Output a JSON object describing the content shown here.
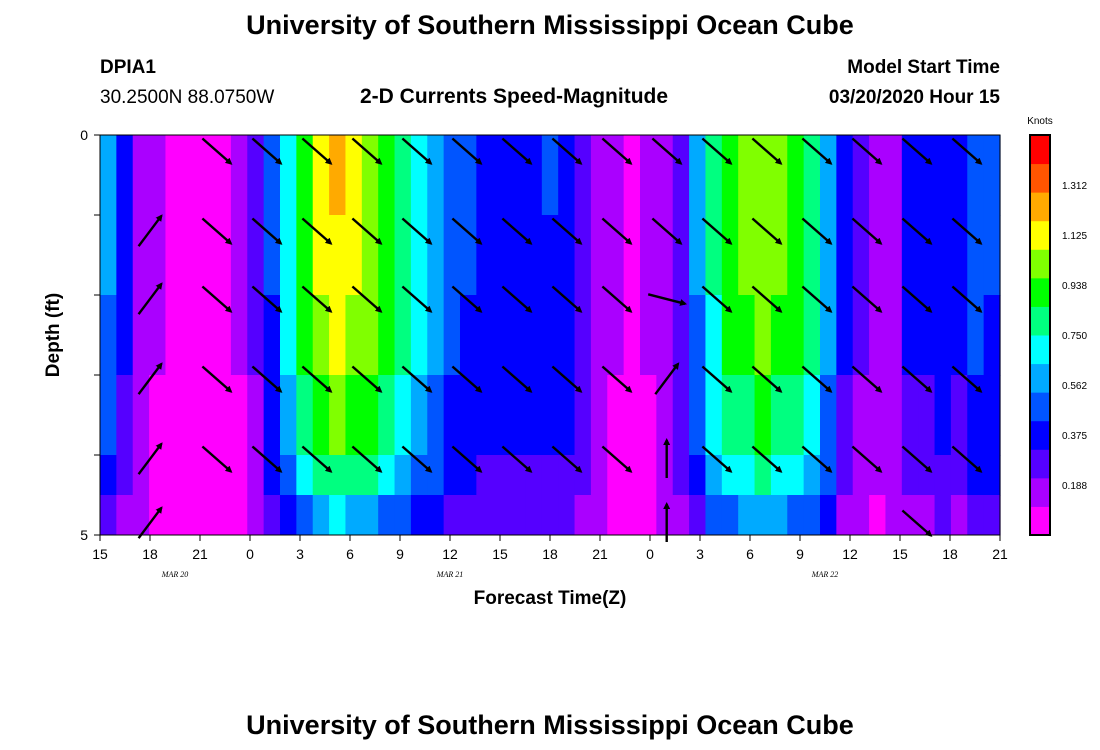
{
  "header": {
    "title": "University of Southern Mississippi Ocean Cube",
    "station": "DPIA1",
    "coords": "30.2500N 88.0750W",
    "subtitle": "2-D Currents Speed-Magnitude",
    "model_start_label": "Model Start Time",
    "model_start_value": "03/20/2020 Hour 15"
  },
  "footer": {
    "title": "University of Southern Mississippi Ocean Cube"
  },
  "colors": {
    "scale": [
      "#ff00ff",
      "#aa00ff",
      "#5500ff",
      "#0000ff",
      "#0055ff",
      "#00aaff",
      "#00ffff",
      "#00ff80",
      "#00ff00",
      "#80ff00",
      "#ffff00",
      "#ffaa00",
      "#ff5500",
      "#ff0000"
    ],
    "arrow": "#000000"
  },
  "chart_data": {
    "type": "heatmap",
    "title": "2-D Currents Speed-Magnitude",
    "xlabel": "Forecast Time(Z)",
    "ylabel": "Depth (ft)",
    "xlim": [
      15,
      69
    ],
    "ylim": [
      0,
      5
    ],
    "y_reversed": true,
    "x_tick_labels": [
      "15",
      "18",
      "21",
      "0",
      "3",
      "6",
      "9",
      "12",
      "15",
      "18",
      "21",
      "0",
      "3",
      "6",
      "9",
      "12",
      "15",
      "18",
      "21"
    ],
    "y_tick_labels": [
      "0",
      "5"
    ],
    "date_labels": [
      {
        "text": "MAR 20",
        "x": 19.5
      },
      {
        "text": "MAR 21",
        "x": 36
      },
      {
        "text": "MAR 22",
        "x": 58.5
      }
    ],
    "colorbar": {
      "label": "Knots",
      "min": 0,
      "max": 1.5,
      "tick_labels": [
        "1.312",
        "1.125",
        "0.938",
        "0.750",
        "0.562",
        "0.375",
        "0.188"
      ],
      "tick_values": [
        1.312,
        1.125,
        0.938,
        0.75,
        0.562,
        0.375,
        0.188
      ]
    },
    "depth_levels": [
      0.25,
      1.25,
      2.25,
      3.25,
      4.25,
      5.0
    ],
    "speed_profile": {
      "hours": [
        15,
        16,
        17,
        18,
        19,
        20,
        21,
        22,
        23,
        24,
        25,
        26,
        27,
        28,
        29,
        30,
        31,
        32,
        33,
        34,
        35,
        36,
        37,
        38,
        39,
        40,
        41,
        42,
        43,
        44,
        45,
        46,
        47,
        48,
        49,
        50,
        51,
        52,
        53,
        54,
        55,
        56,
        57,
        58,
        59,
        60,
        61,
        62,
        63,
        64,
        65,
        66,
        67,
        68,
        69
      ],
      "values": [
        0.55,
        0.35,
        0.2,
        0.12,
        0.08,
        0.06,
        0.06,
        0.08,
        0.12,
        0.25,
        0.45,
        0.7,
        0.95,
        1.12,
        1.18,
        1.15,
        1.05,
        0.95,
        0.85,
        0.72,
        0.6,
        0.5,
        0.45,
        0.42,
        0.4,
        0.4,
        0.42,
        0.43,
        0.4,
        0.3,
        0.2,
        0.12,
        0.1,
        0.12,
        0.2,
        0.3,
        0.55,
        0.8,
        0.95,
        1.02,
        1.05,
        1.02,
        0.95,
        0.85,
        0.6,
        0.38,
        0.25,
        0.18,
        0.2,
        0.35,
        0.35,
        0.4,
        0.35,
        0.5,
        0.45
      ],
      "depth_factors": [
        1.0,
        0.98,
        0.92,
        0.82,
        0.72,
        0.55
      ]
    },
    "arrows": [
      {
        "x": 18,
        "dir": "NE",
        "depths": [
          1,
          2,
          3,
          4,
          5
        ]
      },
      {
        "x": 22,
        "dir": "SE",
        "depths": [
          0,
          1,
          2,
          3,
          4
        ]
      },
      {
        "x": 25,
        "dir": "SE",
        "depths": [
          0,
          1,
          2,
          3,
          4
        ]
      },
      {
        "x": 28,
        "dir": "SE",
        "depths": [
          0,
          1,
          2,
          3,
          4
        ]
      },
      {
        "x": 31,
        "dir": "SE",
        "depths": [
          0,
          1,
          2,
          3,
          4
        ]
      },
      {
        "x": 34,
        "dir": "SE",
        "depths": [
          0,
          1,
          2,
          3,
          4
        ]
      },
      {
        "x": 37,
        "dir": "SE",
        "depths": [
          0,
          1,
          2,
          3,
          4
        ]
      },
      {
        "x": 40,
        "dir": "SE",
        "depths": [
          0,
          1,
          2,
          3,
          4
        ]
      },
      {
        "x": 43,
        "dir": "SE",
        "depths": [
          0,
          1,
          2,
          3,
          4
        ]
      },
      {
        "x": 46,
        "dir": "SE",
        "depths": [
          0,
          1,
          2,
          3,
          4
        ]
      },
      {
        "x": 49,
        "dir": "SE",
        "depths": [
          0,
          1
        ]
      },
      {
        "x": 49,
        "dir": "E",
        "depths": [
          2
        ]
      },
      {
        "x": 49,
        "dir": "NE",
        "depths": [
          3
        ]
      },
      {
        "x": 49,
        "dir": "N",
        "depths": [
          4,
          5
        ]
      },
      {
        "x": 52,
        "dir": "SE",
        "depths": [
          0,
          1,
          2,
          3,
          4
        ]
      },
      {
        "x": 55,
        "dir": "SE",
        "depths": [
          0,
          1,
          2,
          3,
          4
        ]
      },
      {
        "x": 58,
        "dir": "SE",
        "depths": [
          0,
          1,
          2,
          3,
          4
        ]
      },
      {
        "x": 61,
        "dir": "SE",
        "depths": [
          0,
          1,
          2,
          3,
          4
        ]
      },
      {
        "x": 64,
        "dir": "SE",
        "depths": [
          0,
          1,
          2,
          3,
          4,
          5
        ]
      },
      {
        "x": 67,
        "dir": "SE",
        "depths": [
          0,
          1,
          2,
          3,
          4
        ]
      }
    ]
  }
}
